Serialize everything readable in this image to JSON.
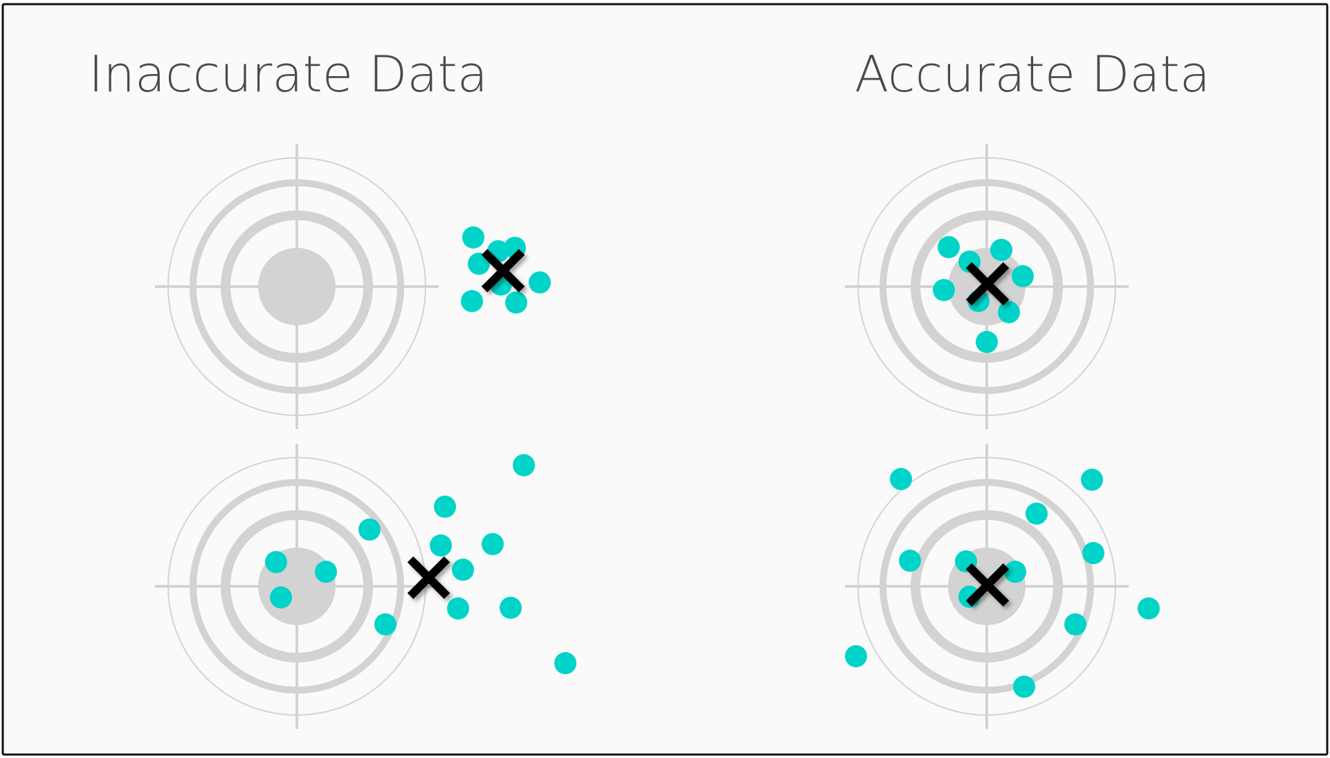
{
  "titles": {
    "left": "Inaccurate Data",
    "right": "Accurate Data"
  },
  "colors": {
    "background": "#fafafa",
    "border": "#111111",
    "target": "#d3d3d3",
    "dot": "#00d4c8",
    "mark": "#000000",
    "title": "#4a4a4a"
  },
  "legend_icons": [
    "target-icon",
    "data-point-dot",
    "average-x-mark"
  ]
}
